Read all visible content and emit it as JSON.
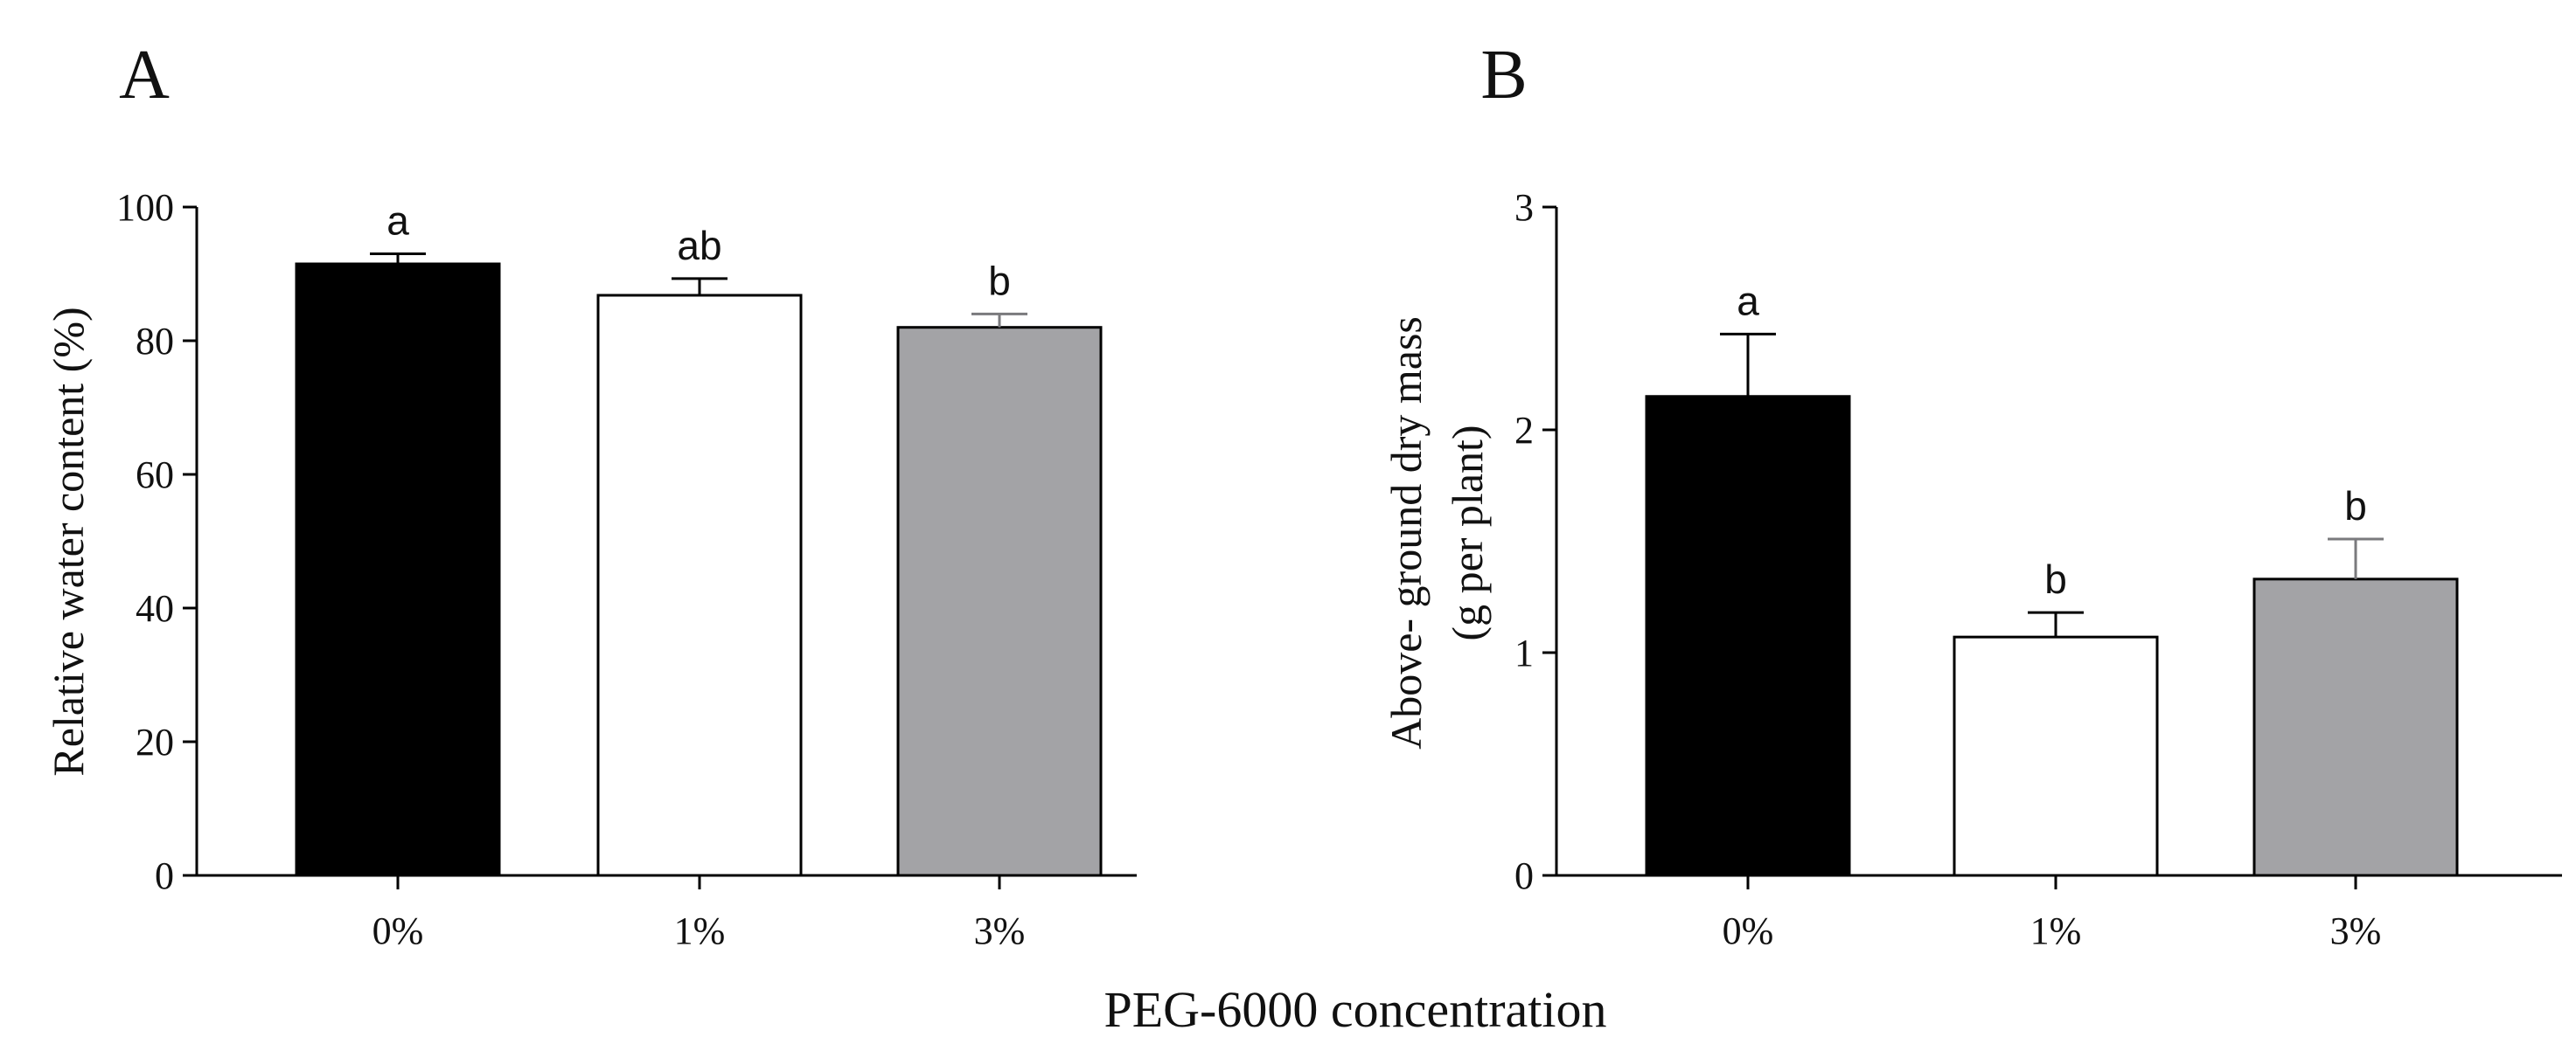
{
  "shared_xlabel": "PEG-6000 concentration",
  "chart_data": [
    {
      "type": "bar",
      "panel": "A",
      "title": "",
      "categories": [
        "0%",
        "1%",
        "3%"
      ],
      "values": [
        91.5,
        86.8,
        82.0
      ],
      "errors": [
        1.5,
        2.5,
        2.0
      ],
      "significance": [
        "a",
        "ab",
        "b"
      ],
      "colors": [
        "#000000",
        "#ffffff",
        "#a3a3a6"
      ],
      "ylabel": "Relative water content (%)",
      "xlabel": "",
      "ylim": [
        0,
        100
      ],
      "yticks": [
        0,
        20,
        40,
        60,
        80,
        100
      ],
      "ytick_labels": [
        "0",
        "20",
        "40",
        "60",
        "80",
        "100"
      ],
      "grid": false,
      "legend": "none"
    },
    {
      "type": "bar",
      "panel": "B",
      "title": "",
      "categories": [
        "0%",
        "1%",
        "3%"
      ],
      "values": [
        2.15,
        1.07,
        1.33
      ],
      "errors": [
        0.28,
        0.11,
        0.18
      ],
      "significance": [
        "a",
        "b",
        "b"
      ],
      "colors": [
        "#000000",
        "#ffffff",
        "#a3a3a6"
      ],
      "ylabel_lines": [
        "Above- ground dry mass",
        "(g per plant)"
      ],
      "xlabel": "",
      "ylim": [
        0,
        3
      ],
      "yticks": [
        0,
        1,
        2,
        3
      ],
      "ytick_labels": [
        "0",
        "1",
        "2",
        "3"
      ],
      "grid": false,
      "legend": "none"
    }
  ]
}
